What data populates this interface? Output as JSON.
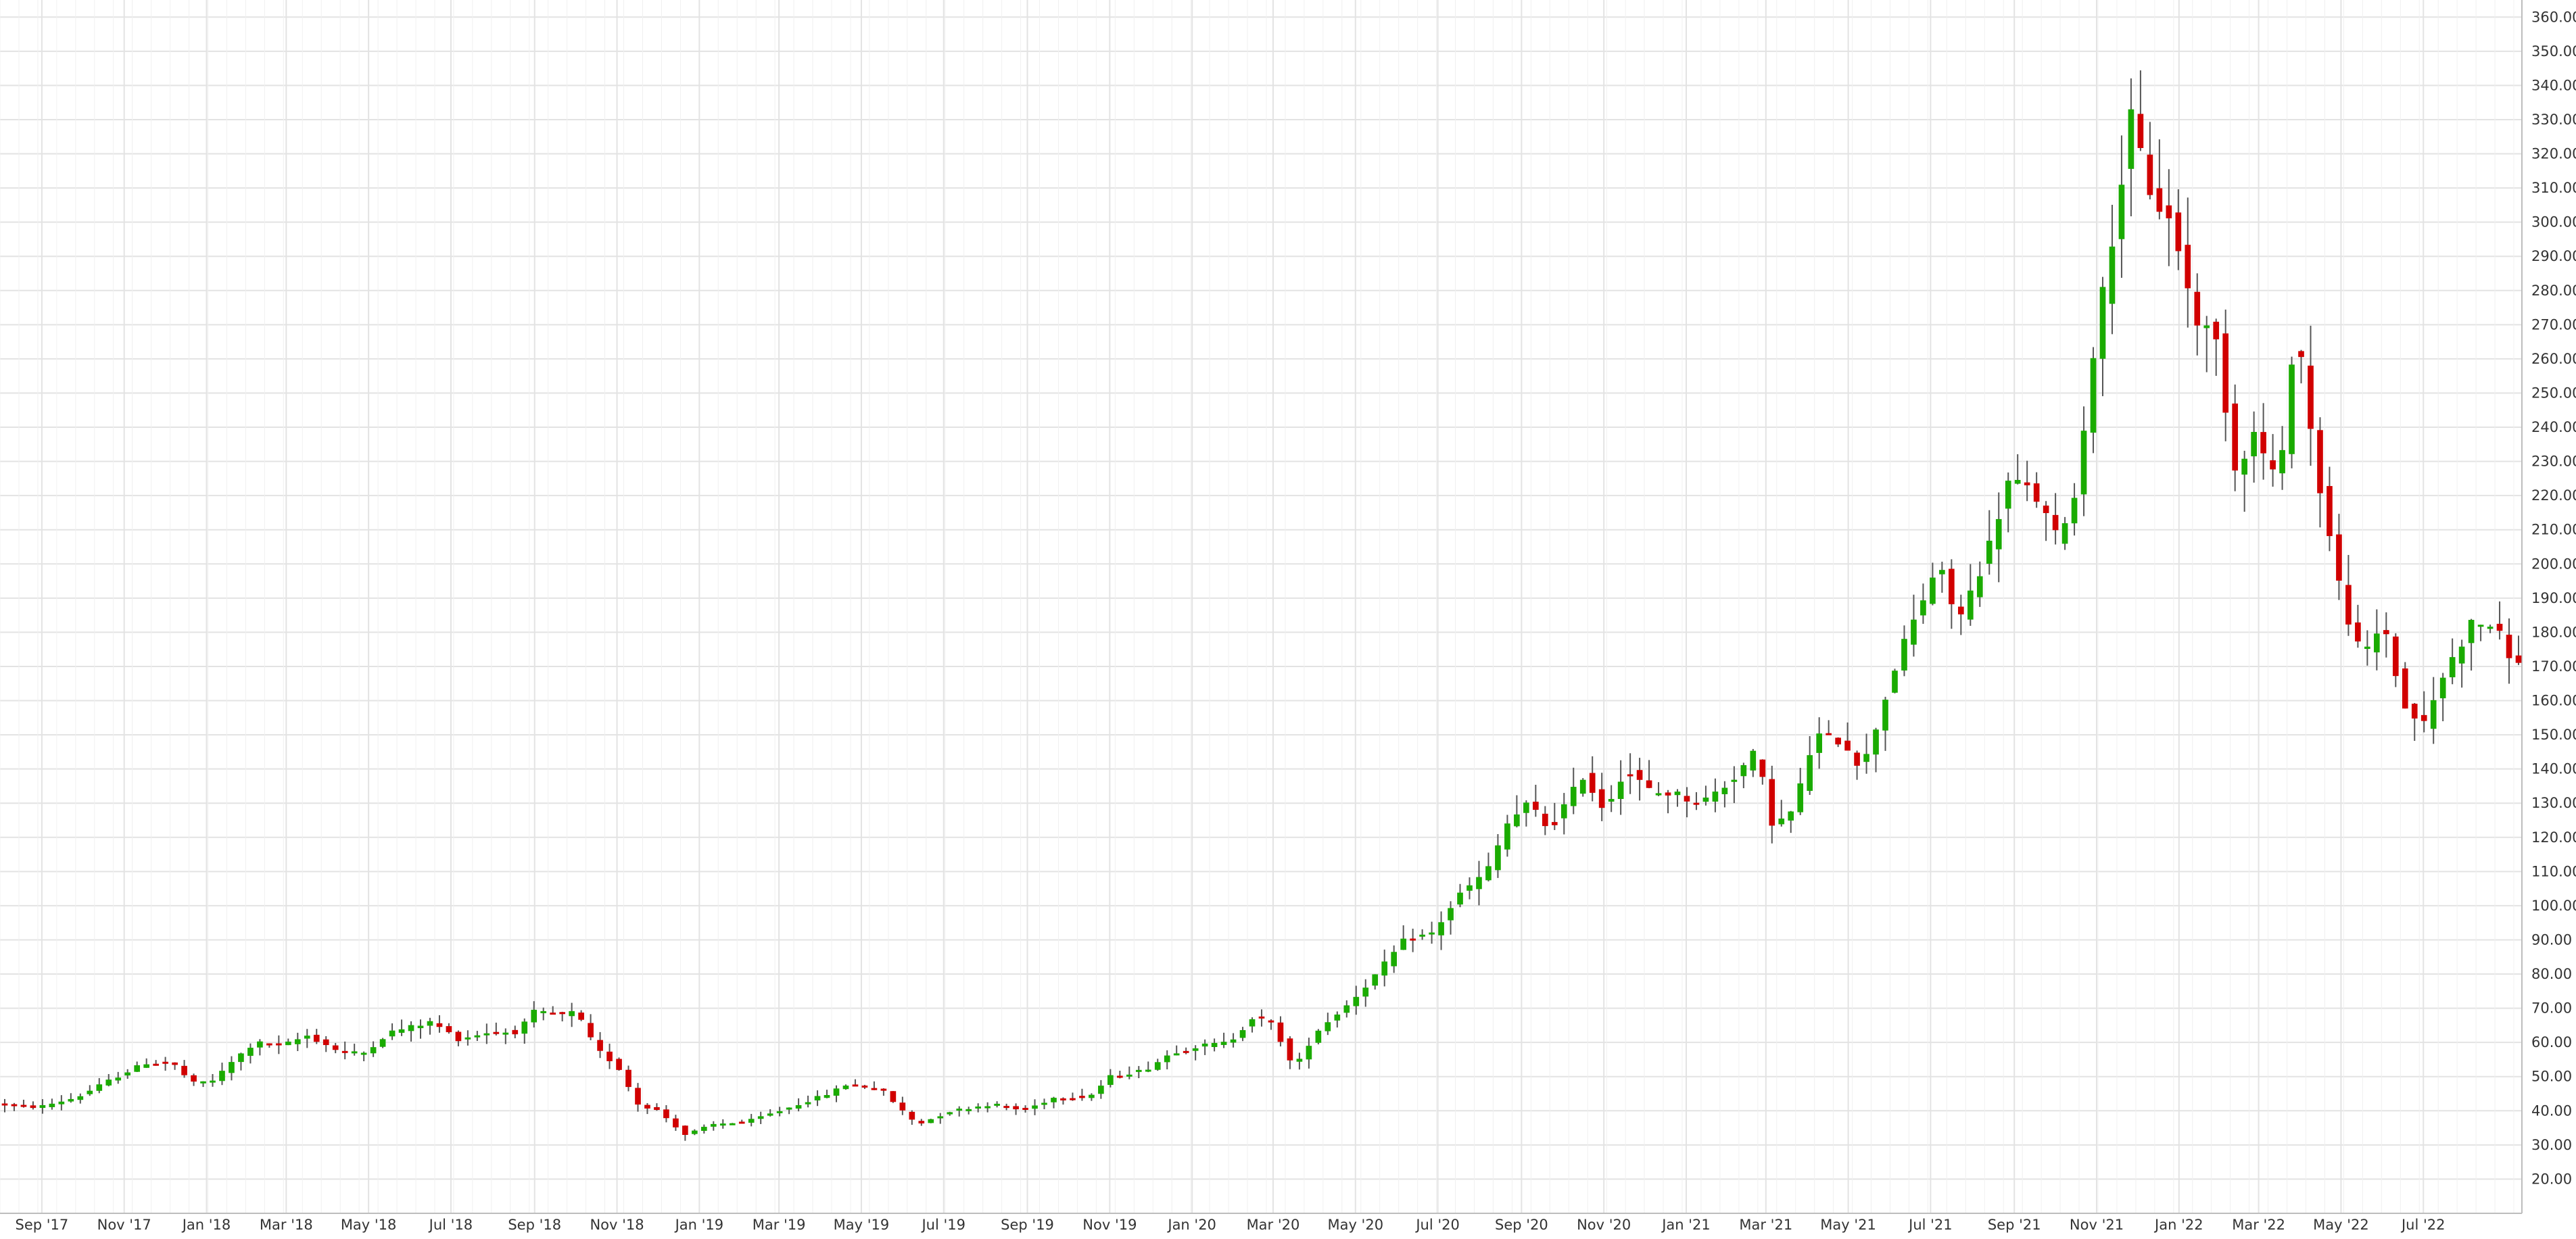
{
  "chart_data": {
    "type": "candlestick",
    "title": "",
    "xlabel": "",
    "ylabel": "",
    "ylim": [
      10,
      365
    ],
    "y_ticks": [
      20,
      30,
      40,
      50,
      60,
      70,
      80,
      90,
      100,
      110,
      120,
      130,
      140,
      150,
      160,
      170,
      180,
      190,
      200,
      210,
      220,
      230,
      240,
      250,
      260,
      270,
      280,
      290,
      300,
      310,
      320,
      330,
      340,
      350,
      360
    ],
    "y_tick_labels": [
      "20.00",
      "30.00",
      "40.00",
      "50.00",
      "60.00",
      "70.00",
      "80.00",
      "90.00",
      "100.00",
      "110.00",
      "120.00",
      "130.00",
      "140.00",
      "150.00",
      "160.00",
      "170.00",
      "180.00",
      "190.00",
      "200.00",
      "210.00",
      "220.00",
      "230.00",
      "240.00",
      "250.00",
      "260.00",
      "270.00",
      "280.00",
      "290.00",
      "300.00",
      "310.00",
      "320.00",
      "330.00",
      "340.00",
      "350.00",
      "360.00"
    ],
    "x_range": [
      "2017-08-01",
      "2022-09-12"
    ],
    "x_ticks": [
      {
        "date": "2017-09-01",
        "label": "Sep '17"
      },
      {
        "date": "2017-11-01",
        "label": "Nov '17"
      },
      {
        "date": "2018-01-01",
        "label": "Jan '18"
      },
      {
        "date": "2018-03-01",
        "label": "Mar '18"
      },
      {
        "date": "2018-05-01",
        "label": "May '18"
      },
      {
        "date": "2018-07-01",
        "label": "Jul '18"
      },
      {
        "date": "2018-09-01",
        "label": "Sep '18"
      },
      {
        "date": "2018-11-01",
        "label": "Nov '18"
      },
      {
        "date": "2019-01-01",
        "label": "Jan '19"
      },
      {
        "date": "2019-03-01",
        "label": "Mar '19"
      },
      {
        "date": "2019-05-01",
        "label": "May '19"
      },
      {
        "date": "2019-07-01",
        "label": "Jul '19"
      },
      {
        "date": "2019-09-01",
        "label": "Sep '19"
      },
      {
        "date": "2019-11-01",
        "label": "Nov '19"
      },
      {
        "date": "2020-01-01",
        "label": "Jan '20"
      },
      {
        "date": "2020-03-01",
        "label": "Mar '20"
      },
      {
        "date": "2020-05-01",
        "label": "May '20"
      },
      {
        "date": "2020-07-01",
        "label": "Jul '20"
      },
      {
        "date": "2020-09-01",
        "label": "Sep '20"
      },
      {
        "date": "2020-11-01",
        "label": "Nov '20"
      },
      {
        "date": "2021-01-01",
        "label": "Jan '21"
      },
      {
        "date": "2021-03-01",
        "label": "Mar '21"
      },
      {
        "date": "2021-05-01",
        "label": "May '21"
      },
      {
        "date": "2021-07-01",
        "label": "Jul '21"
      },
      {
        "date": "2021-09-01",
        "label": "Sep '21"
      },
      {
        "date": "2021-11-01",
        "label": "Nov '21"
      },
      {
        "date": "2022-01-01",
        "label": "Jan '22"
      },
      {
        "date": "2022-03-01",
        "label": "Mar '22"
      },
      {
        "date": "2022-05-01",
        "label": "May '22"
      },
      {
        "date": "2022-07-01",
        "label": "Jul '22"
      }
    ],
    "grid": true,
    "colors": {
      "up": "#1aab00",
      "down": "#d10000",
      "wick": "#555555",
      "grid": "#e3e3e3",
      "axis": "#bdbdbd"
    },
    "price_path": [
      [
        "2017-08-01",
        42
      ],
      [
        "2017-09-01",
        41
      ],
      [
        "2017-10-01",
        44
      ],
      [
        "2017-10-20",
        48
      ],
      [
        "2017-11-20",
        54
      ],
      [
        "2017-12-10",
        54
      ],
      [
        "2017-12-25",
        48
      ],
      [
        "2018-01-10",
        49
      ],
      [
        "2018-01-25",
        55
      ],
      [
        "2018-02-10",
        60
      ],
      [
        "2018-03-01",
        59
      ],
      [
        "2018-03-20",
        62
      ],
      [
        "2018-04-15",
        57
      ],
      [
        "2018-05-01",
        57
      ],
      [
        "2018-05-20",
        63
      ],
      [
        "2018-06-20",
        66
      ],
      [
        "2018-07-10",
        61
      ],
      [
        "2018-08-01",
        63
      ],
      [
        "2018-08-25",
        63
      ],
      [
        "2018-09-01",
        69
      ],
      [
        "2018-09-25",
        68
      ],
      [
        "2018-10-05",
        69
      ],
      [
        "2018-10-20",
        58
      ],
      [
        "2018-11-05",
        53
      ],
      [
        "2018-11-20",
        42
      ],
      [
        "2018-12-05",
        40
      ],
      [
        "2018-12-25",
        33
      ],
      [
        "2019-01-15",
        36
      ],
      [
        "2019-02-10",
        37
      ],
      [
        "2019-03-05",
        40
      ],
      [
        "2019-04-10",
        45
      ],
      [
        "2019-04-25",
        48
      ],
      [
        "2019-05-20",
        46
      ],
      [
        "2019-06-01",
        41
      ],
      [
        "2019-06-15",
        36
      ],
      [
        "2019-07-10",
        40
      ],
      [
        "2019-08-10",
        42
      ],
      [
        "2019-09-01",
        40
      ],
      [
        "2019-09-25",
        44
      ],
      [
        "2019-10-20",
        44
      ],
      [
        "2019-11-05",
        50
      ],
      [
        "2019-12-01",
        52
      ],
      [
        "2019-12-20",
        57
      ],
      [
        "2020-01-10",
        59
      ],
      [
        "2020-02-01",
        60
      ],
      [
        "2020-02-20",
        68
      ],
      [
        "2020-03-05",
        65
      ],
      [
        "2020-03-20",
        52
      ],
      [
        "2020-04-05",
        63
      ],
      [
        "2020-05-01",
        72
      ],
      [
        "2020-05-20",
        80
      ],
      [
        "2020-06-10",
        90
      ],
      [
        "2020-07-01",
        92
      ],
      [
        "2020-07-20",
        103
      ],
      [
        "2020-08-10",
        110
      ],
      [
        "2020-08-25",
        124
      ],
      [
        "2020-09-10",
        130
      ],
      [
        "2020-09-25",
        122
      ],
      [
        "2020-10-20",
        138
      ],
      [
        "2020-11-05",
        128
      ],
      [
        "2020-11-20",
        140
      ],
      [
        "2020-12-10",
        133
      ],
      [
        "2020-12-25",
        133
      ],
      [
        "2021-01-15",
        130
      ],
      [
        "2021-02-05",
        136
      ],
      [
        "2021-02-25",
        145
      ],
      [
        "2021-03-10",
        123
      ],
      [
        "2021-03-25",
        128
      ],
      [
        "2021-04-10",
        150
      ],
      [
        "2021-05-01",
        148
      ],
      [
        "2021-05-15",
        140
      ],
      [
        "2021-06-10",
        172
      ],
      [
        "2021-07-10",
        200
      ],
      [
        "2021-07-25",
        183
      ],
      [
        "2021-08-15",
        203
      ],
      [
        "2021-09-01",
        225
      ],
      [
        "2021-09-20",
        220
      ],
      [
        "2021-10-05",
        208
      ],
      [
        "2021-10-20",
        220
      ],
      [
        "2021-11-01",
        260
      ],
      [
        "2021-11-20",
        305
      ],
      [
        "2021-11-30",
        330
      ],
      [
        "2021-12-15",
        308
      ],
      [
        "2022-01-01",
        298
      ],
      [
        "2022-01-15",
        273
      ],
      [
        "2022-02-01",
        265
      ],
      [
        "2022-02-15",
        228
      ],
      [
        "2022-03-01",
        238
      ],
      [
        "2022-03-20",
        223
      ],
      [
        "2022-04-01",
        273
      ],
      [
        "2022-04-15",
        230
      ],
      [
        "2022-05-05",
        190
      ],
      [
        "2022-05-20",
        172
      ],
      [
        "2022-06-05",
        183
      ],
      [
        "2022-06-20",
        158
      ],
      [
        "2022-07-05",
        153
      ],
      [
        "2022-07-20",
        168
      ],
      [
        "2022-08-10",
        183
      ],
      [
        "2022-08-25",
        182
      ],
      [
        "2022-09-12",
        170
      ]
    ]
  }
}
